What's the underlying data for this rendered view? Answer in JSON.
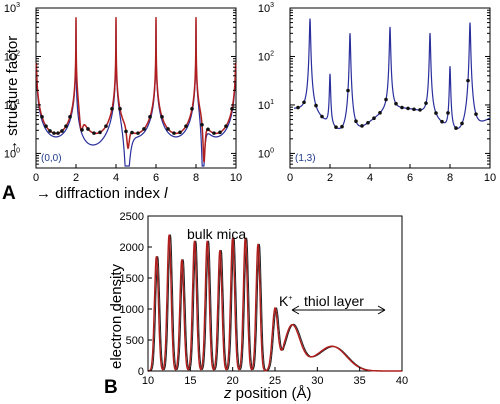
{
  "panel_labels": {
    "a": "A",
    "b": "B"
  },
  "colors": {
    "fit_red": "#b01e1e",
    "fit_blue": "#2a2f9c",
    "data_black": "#111111",
    "tag_blue": "#1f3a8a"
  },
  "chart_data": [
    {
      "type": "line",
      "panel": "A-left",
      "tag": "(0,0)",
      "ylabel": "→ structure factor",
      "xlabel_prefix": "→ diffraction index ",
      "xlabel_var": "l",
      "xlim": [
        0,
        10
      ],
      "ylim": [
        0.5,
        1000
      ],
      "yscale": "log",
      "xticks": [
        "0",
        "2",
        "4",
        "6",
        "8",
        "10"
      ],
      "yticks": [
        {
          "base": "10",
          "exp": "0"
        },
        {
          "base": "10",
          "exp": "1"
        },
        {
          "base": "10",
          "exp": "2"
        },
        {
          "base": "10",
          "exp": "3"
        }
      ],
      "peaks": [
        0,
        2,
        4,
        6,
        8,
        10
      ],
      "series": [
        {
          "role": "data",
          "x": [
            0.3,
            0.5,
            0.7,
            0.9,
            1.1,
            1.3,
            1.5,
            1.7,
            2.3,
            2.6,
            2.9,
            3.2,
            3.5,
            3.8,
            4.2,
            4.5,
            4.8,
            5.1,
            5.4,
            5.7,
            6.3,
            6.6,
            6.9,
            7.2,
            7.5,
            7.8,
            8.3,
            8.6,
            8.9,
            9.2,
            9.5,
            9.8
          ]
        },
        {
          "role": "fit-red"
        },
        {
          "role": "fit-blue"
        }
      ]
    },
    {
      "type": "line",
      "panel": "A-right",
      "tag": "(1,3)",
      "xlim": [
        0,
        10
      ],
      "ylim": [
        0.5,
        1000
      ],
      "yscale": "log",
      "xticks": [
        "0",
        "2",
        "4",
        "6",
        "8",
        "10"
      ],
      "yticks": [
        {
          "base": "10",
          "exp": "0"
        },
        {
          "base": "10",
          "exp": "1"
        },
        {
          "base": "10",
          "exp": "2"
        },
        {
          "base": "10",
          "exp": "3"
        }
      ],
      "peaks": [
        1,
        2,
        3,
        5,
        7,
        8,
        9
      ],
      "series": [
        {
          "role": "data",
          "x": [
            0.4,
            0.7,
            1.3,
            1.6,
            2.3,
            2.6,
            2.9,
            3.3,
            3.6,
            3.9,
            4.2,
            4.5,
            4.8,
            5.3,
            5.6,
            5.9,
            6.2,
            6.5,
            6.8,
            7.3,
            7.6,
            7.9,
            8.3,
            8.6,
            8.9,
            9.3
          ]
        },
        {
          "role": "fit-blue"
        }
      ]
    },
    {
      "type": "line",
      "panel": "B",
      "xlabel_var": "z",
      "xlabel_rest": " position (Å)",
      "ylabel": "electron density",
      "xlim": [
        10,
        40
      ],
      "ylim": [
        0,
        2500
      ],
      "xticks": [
        "10",
        "15",
        "20",
        "25",
        "30",
        "35",
        "40"
      ],
      "yticks": [
        "0",
        "500",
        "1000",
        "1500",
        "2000",
        "2500"
      ],
      "peaks_z": [
        11,
        12.5,
        14,
        15.5,
        17,
        18.5,
        20,
        21.5,
        23,
        25,
        27,
        32
      ],
      "peaks_density": [
        1850,
        2200,
        1800,
        2100,
        2100,
        1950,
        2150,
        2150,
        2050,
        950,
        700,
        350
      ],
      "annotations": {
        "bulk": "bulk mica",
        "kplus": "K",
        "kplus_sup": "+",
        "thiol": "thiol layer"
      }
    }
  ]
}
